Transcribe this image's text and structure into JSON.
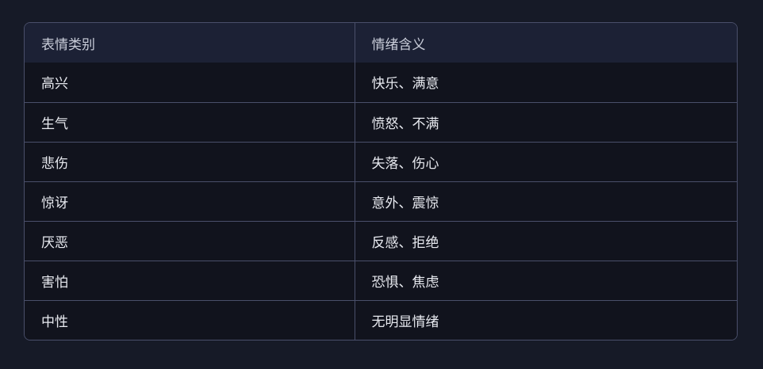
{
  "table": {
    "headers": [
      "表情类别",
      "情绪含义"
    ],
    "rows": [
      [
        "高兴",
        "快乐、满意"
      ],
      [
        "生气",
        "愤怒、不满"
      ],
      [
        "悲伤",
        "失落、伤心"
      ],
      [
        "惊讶",
        "意外、震惊"
      ],
      [
        "厌恶",
        "反感、拒绝"
      ],
      [
        "害怕",
        "恐惧、焦虑"
      ],
      [
        "中性",
        "无明显情绪"
      ]
    ]
  }
}
